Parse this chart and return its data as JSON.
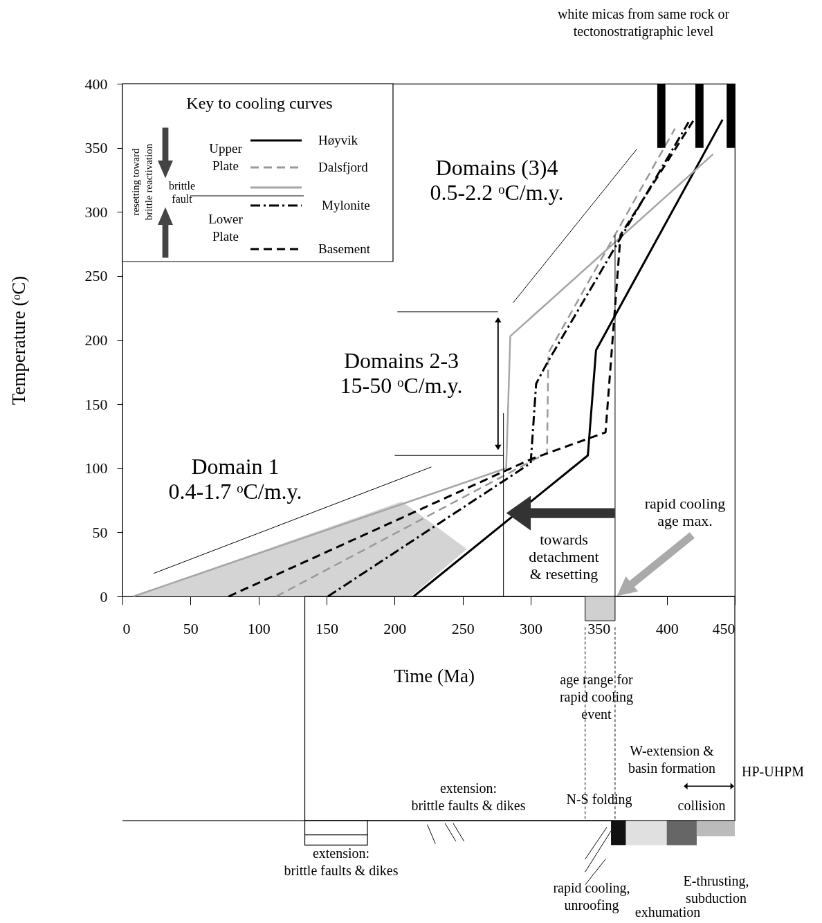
{
  "chart_data": {
    "type": "line",
    "xlabel": "Time (Ma)",
    "ylabel": "Temperature (ᵒC)",
    "legend_title": "Key to cooling curves",
    "legend": "top left",
    "xlim": [
      0,
      450
    ],
    "ylim": [
      0,
      400
    ],
    "xticks": [
      0,
      50,
      100,
      150,
      200,
      250,
      300,
      350,
      400,
      450
    ],
    "yticks": [
      0,
      50,
      100,
      150,
      200,
      250,
      300,
      350,
      400
    ],
    "series": [
      {
        "name": "Høyvik",
        "color": "#000000",
        "line_style": "solid",
        "x": [
          214,
          342,
          348,
          441
        ],
        "values": [
          0,
          110,
          192,
          372
        ]
      },
      {
        "name": "Dalsfjord",
        "color": "#999999",
        "line_style": "dashed",
        "x": [
          113,
          312,
          313,
          406
        ],
        "values": [
          0,
          112,
          190,
          365
        ]
      },
      {
        "color": "#a6a6a6",
        "line_style": "solid",
        "x": [
          8,
          282,
          285,
          434
        ],
        "values": [
          0,
          100,
          203,
          345
        ]
      },
      {
        "name": "Mylonite",
        "color": "#000000",
        "line_style": "dashdot",
        "x": [
          151,
          300,
          304,
          312,
          416
        ],
        "values": [
          0,
          104,
          166,
          182,
          370
        ]
      },
      {
        "name": "Basement",
        "color": "#000000",
        "line_style": "dashed",
        "x": [
          78,
          300,
          355,
          366,
          420
        ],
        "values": [
          0,
          107,
          128,
          282,
          372
        ]
      },
      {
        "color": "#000000",
        "line_style": "solid",
        "x": [
          23,
          227
        ],
        "values": [
          18,
          101
        ]
      },
      {
        "color": "#000000",
        "line_style": "solid",
        "x": [
          202,
          276
        ],
        "values": [
          222,
          222
        ]
      },
      {
        "color": "#000000",
        "line_style": "solid",
        "x": [
          200,
          280
        ],
        "values": [
          110,
          110
        ]
      },
      {
        "color": "#000000",
        "line_style": "solid",
        "x": [
          287,
          378
        ],
        "values": [
          229,
          349
        ]
      },
      {
        "color": "#000000",
        "line_style": "solid",
        "x": [
          280,
          280
        ],
        "values": [
          0,
          143
        ]
      },
      {
        "color": "#000000",
        "line_style": "solid",
        "x": [
          362,
          362
        ],
        "values": [
          0,
          282
        ]
      },
      {
        "type": "bar",
        "color": "#000000",
        "x": [
          396,
          424,
          447
        ],
        "values": [
          50,
          50,
          50
        ],
        "base": [
          350,
          350,
          350
        ]
      }
    ],
    "annotations": [
      "white micas from same rock or\ntectonostratigraphic level",
      "Domain 1\n0.4-1.7 ᵒC/m.y.",
      "Domains 2-3\n15-50 ᵒC/m.y.",
      "Domains (3)4\n0.5-2.2 ᵒC/m.y.",
      "towards\ndetachment\n& resetting",
      "rapid cooling\nage max.",
      "age range for\nrapid cooling\nevent",
      "extension:\nbrittle faults & dikes",
      "extension:\nbrittle faults & dikes",
      "N-S folding",
      "W-extension &\nbasin formation",
      "HP-UHPM",
      "collision",
      "rapid cooling,\nunroofing",
      "exhumation",
      "E-thrusting,\nsubduction",
      "Upper\nPlate",
      "Lower\nPlate",
      "brittle\nfault",
      "resetting toward\nbrittle reactivation"
    ]
  }
}
